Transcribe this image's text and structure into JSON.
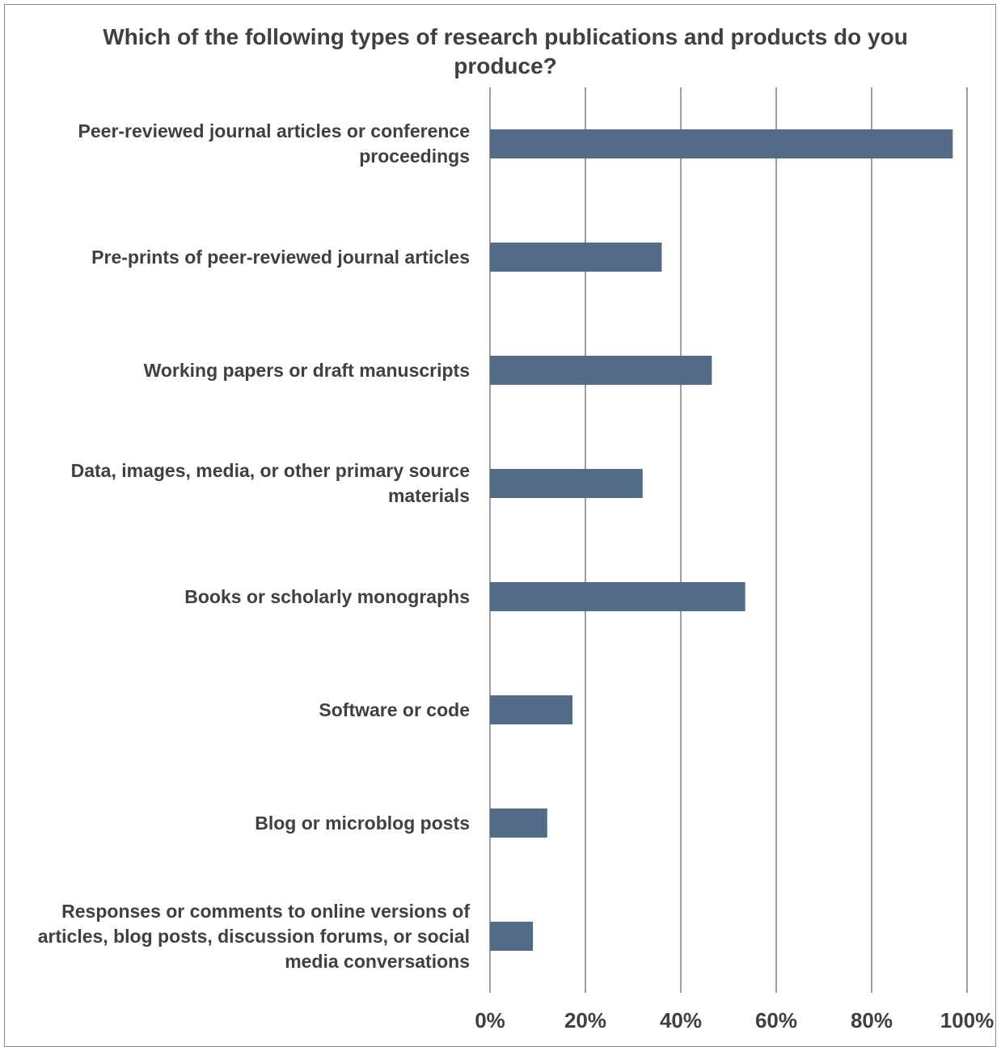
{
  "chart_data": {
    "type": "bar",
    "orientation": "horizontal",
    "title": "Which of the following types of research publications and products do you produce?",
    "title_lines": [
      "Which of the following types of research publications and products do you",
      "produce?"
    ],
    "categories": [
      "Peer-reviewed journal articles or conference proceedings",
      "Pre-prints of peer-reviewed journal articles",
      "Working papers or draft manuscripts",
      "Data, images, media, or other primary source materials",
      "Books or scholarly monographs",
      "Software or code",
      "Blog or microblog posts",
      "Responses or comments to online versions of articles, blog posts, discussion forums, or social media conversations"
    ],
    "values": [
      97,
      36,
      46.5,
      32,
      53.5,
      17.3,
      12,
      9
    ],
    "xlim": [
      0,
      100
    ],
    "x_ticks": [
      "0%",
      "20%",
      "40%",
      "60%",
      "80%",
      "100%"
    ],
    "x_tick_values": [
      0,
      20,
      40,
      60,
      80,
      100
    ],
    "grid": true,
    "legend": "none",
    "colors": {
      "bar": "#526b87",
      "grid": "#7f7f7f",
      "text": "#404040"
    }
  }
}
